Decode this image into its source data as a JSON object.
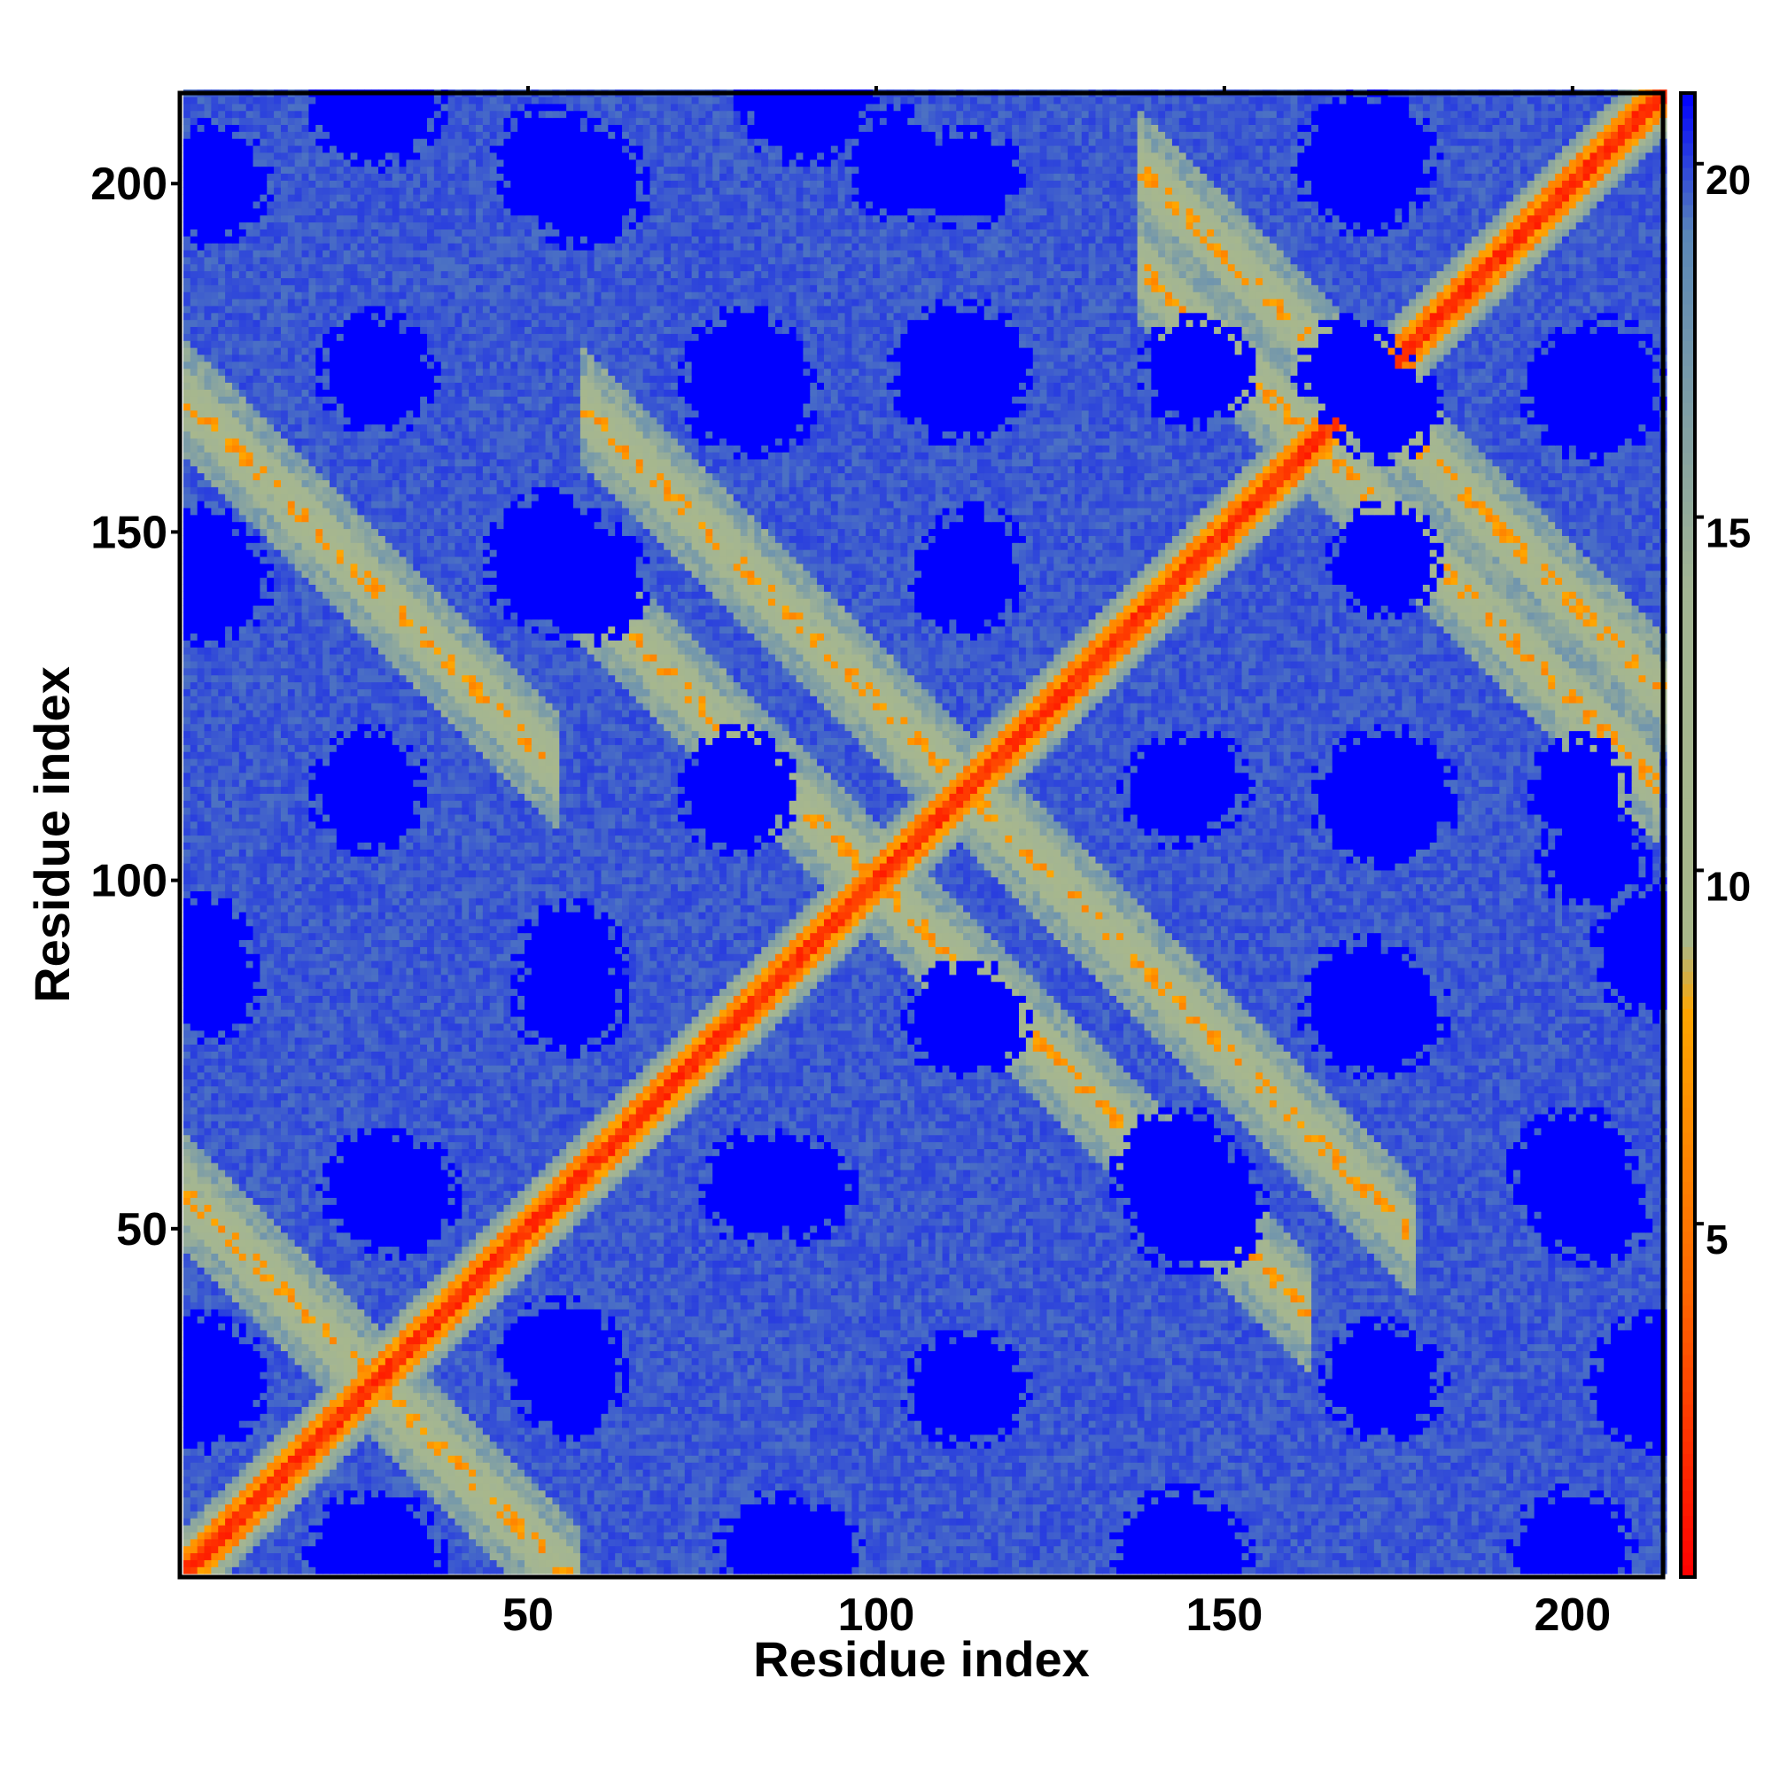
{
  "chart_data": {
    "type": "heatmap",
    "title": "",
    "xlabel": "Residue index",
    "ylabel": "Residue index",
    "n_residues": 213,
    "xlim": [
      1,
      213
    ],
    "ylim": [
      1,
      213
    ],
    "x_ticks": [
      50,
      100,
      150,
      200
    ],
    "y_ticks": [
      50,
      100,
      150,
      200
    ],
    "colorbar": {
      "ticks": [
        5,
        10,
        15,
        20
      ],
      "range": [
        0,
        21
      ],
      "stops": [
        {
          "value": 0,
          "color": "#ff0000"
        },
        {
          "value": 4,
          "color": "#ff6600"
        },
        {
          "value": 8,
          "color": "#ffa500"
        },
        {
          "value": 9,
          "color": "#a9b88a"
        },
        {
          "value": 14,
          "color": "#a3b593"
        },
        {
          "value": 19,
          "color": "#5a87b8"
        },
        {
          "value": 21,
          "color": "#0000ff"
        }
      ]
    },
    "colors": {
      "close": "#ff0000",
      "near": "#ff9900",
      "mid": "#b8c08c",
      "background": "#5a87b8",
      "far": "#0000ff"
    },
    "patterns": {
      "main_diagonal": true,
      "anti_parallel_bands": [
        {
          "center_sum": 56,
          "from_x": 1,
          "to_x": 55
        },
        {
          "center_sum": 170,
          "from_x": 1,
          "to_x": 52
        },
        {
          "center_sum": 226,
          "from_x": 60,
          "to_x": 175
        },
        {
          "center_sum": 340,
          "from_x": 140,
          "to_x": 213
        },
        {
          "center_sum": 326,
          "from_x": 140,
          "to_x": 210
        },
        {
          "center_sum": 200,
          "from_x": 56,
          "to_x": 160
        }
      ],
      "far_clusters": [
        [
          53,
          203
        ],
        [
          81,
          173
        ],
        [
          28,
          173
        ],
        [
          112,
          173
        ],
        [
          168,
          173
        ],
        [
          205,
          173
        ],
        [
          53,
          146
        ],
        [
          114,
          146
        ],
        [
          173,
          146
        ],
        [
          27,
          113
        ],
        [
          80,
          113
        ],
        [
          143,
          113
        ],
        [
          201,
          113
        ],
        [
          56,
          89
        ],
        [
          112,
          80
        ],
        [
          170,
          82
        ],
        [
          28,
          56
        ],
        [
          83,
          56
        ],
        [
          143,
          58
        ],
        [
          200,
          58
        ],
        [
          55,
          31
        ],
        [
          112,
          27
        ],
        [
          172,
          29
        ],
        [
          85,
          4
        ],
        [
          28,
          4
        ],
        [
          143,
          4
        ],
        [
          200,
          4
        ],
        [
          3,
          90
        ],
        [
          3,
          28
        ],
        [
          3,
          146
        ],
        [
          212,
          28
        ],
        [
          212,
          90
        ],
        [
          103,
          203
        ],
        [
          170,
          203
        ]
      ]
    }
  }
}
